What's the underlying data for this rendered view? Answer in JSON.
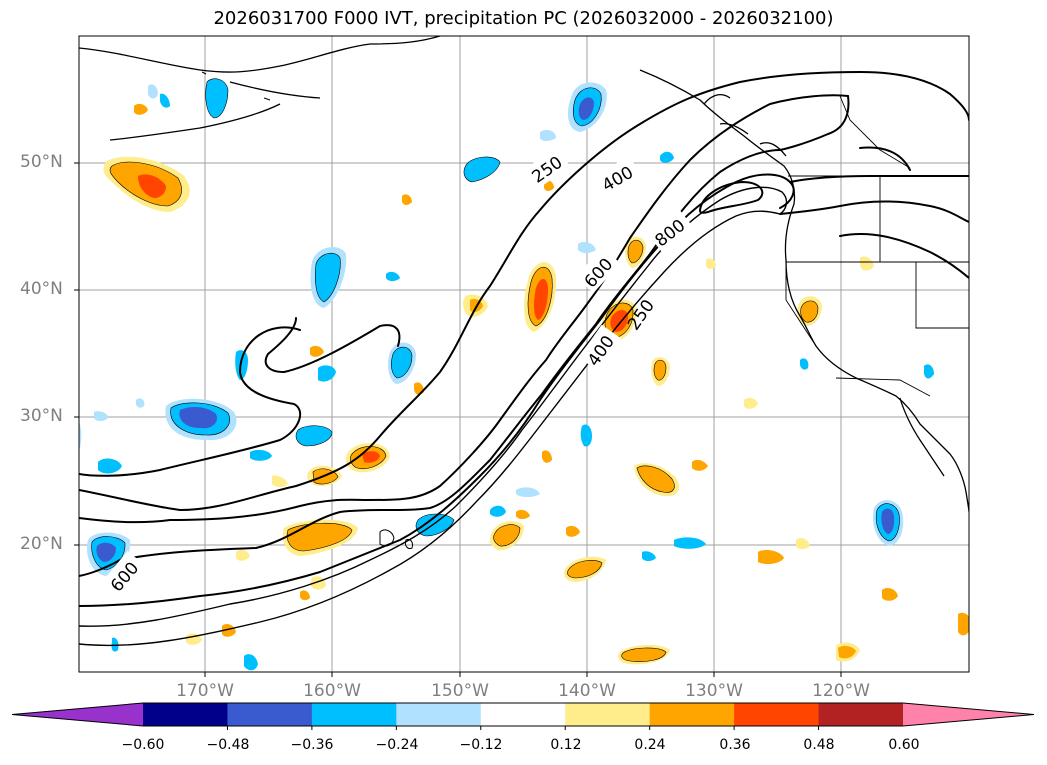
{
  "title": "2026031700 F000 IVT, precipitation PC (2026032000 - 2026032100)",
  "lat_labels": [
    "50°N",
    "40°N",
    "30°N",
    "20°N"
  ],
  "lon_labels": [
    "170°W",
    "160°W",
    "150°W",
    "140°W",
    "130°W",
    "120°W"
  ],
  "contour_labels": [
    "250",
    "400",
    "800",
    "600",
    "250",
    "400",
    "600"
  ],
  "colorbar": {
    "ticks": [
      "−0.60",
      "−0.48",
      "−0.36",
      "−0.24",
      "−0.12",
      "0.12",
      "0.24",
      "0.36",
      "0.48",
      "0.60"
    ],
    "colors": [
      "#9932cc",
      "#00008b",
      "#3a5bd0",
      "#00bfff",
      "#b0e2ff",
      "#ffffff",
      "#ffec8b",
      "#ffa500",
      "#ff4500",
      "#b22222",
      "#ff82ab"
    ]
  },
  "colors": {
    "precip_pos_light": "#ffec8b",
    "precip_pos_mid": "#ffa500",
    "precip_pos_high": "#ff4500",
    "precip_neg_light": "#b0e2ff",
    "precip_neg_mid": "#00bfff",
    "precip_neg_high": "#3a5bd0",
    "grid": "#a0a0a0",
    "label_gray": "#7f7f7f"
  }
}
